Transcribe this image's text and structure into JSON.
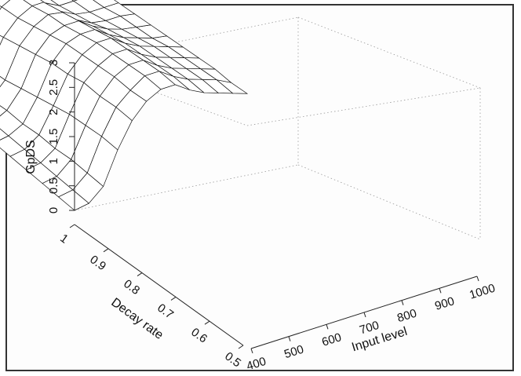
{
  "chart_data": {
    "type": "surface",
    "title": "",
    "zlabel": "GpDS",
    "xlabel": "Input level",
    "ylabel": "Decay rate",
    "x_ticks": [
      "400",
      "500",
      "600",
      "700",
      "800",
      "900",
      "1000"
    ],
    "y_ticks": [
      "1",
      "0.9",
      "0.8",
      "0.7",
      "0.6",
      "0.5"
    ],
    "z_ticks": [
      "0",
      "0.5",
      "1",
      "1.5",
      "2",
      "2.5",
      "3"
    ],
    "xlim": [
      400,
      1000
    ],
    "ylim": [
      0.5,
      1.0
    ],
    "zlim": [
      0,
      3
    ],
    "grid": "dotted box",
    "surface": {
      "rows": "decay rate 0.5 to 1.0 in 11 steps",
      "cols": "input level 400 to 1000 in 13 steps",
      "z": [
        [
          0,
          0,
          0.05,
          0.15,
          0.55,
          0.85,
          1.0,
          0.95,
          0.55,
          0.35,
          0.3,
          0.25,
          0.2
        ],
        [
          0,
          0,
          0.05,
          0.2,
          0.65,
          0.95,
          1.05,
          1.0,
          0.6,
          0.4,
          0.35,
          0.3,
          0.25
        ],
        [
          0,
          0,
          0.05,
          0.25,
          0.75,
          1.0,
          1.1,
          1.05,
          0.7,
          0.5,
          0.4,
          0.35,
          0.3
        ],
        [
          0,
          0,
          0.05,
          0.3,
          0.85,
          1.1,
          1.2,
          1.1,
          0.8,
          0.6,
          0.5,
          0.45,
          0.35
        ],
        [
          0,
          0,
          0.1,
          0.4,
          0.95,
          1.2,
          1.25,
          1.2,
          0.95,
          0.75,
          0.6,
          0.5,
          0.4
        ],
        [
          0,
          0,
          0.1,
          0.5,
          1.05,
          1.3,
          1.35,
          1.3,
          1.05,
          0.85,
          0.7,
          0.55,
          0.45
        ],
        [
          0,
          0,
          0.15,
          0.6,
          1.1,
          1.35,
          1.45,
          1.4,
          1.15,
          0.95,
          0.8,
          0.65,
          0.5
        ],
        [
          0,
          0,
          0.15,
          0.7,
          1.2,
          1.4,
          1.5,
          1.45,
          1.2,
          1.0,
          0.85,
          0.7,
          0.55
        ],
        [
          0,
          0,
          0.2,
          0.75,
          1.2,
          1.45,
          1.55,
          1.5,
          1.25,
          1.05,
          0.9,
          0.75,
          0.6
        ],
        [
          0,
          0,
          0.2,
          0.8,
          1.25,
          1.45,
          1.6,
          1.55,
          1.3,
          1.1,
          0.95,
          0.8,
          0.6
        ],
        [
          0,
          0,
          0.2,
          0.8,
          1.25,
          1.5,
          1.6,
          1.55,
          1.3,
          1.1,
          0.95,
          0.8,
          0.65
        ]
      ]
    },
    "colors": {
      "mesh_line": "#111111",
      "mesh_fill": "#ffffff",
      "frame": "#333333"
    }
  }
}
